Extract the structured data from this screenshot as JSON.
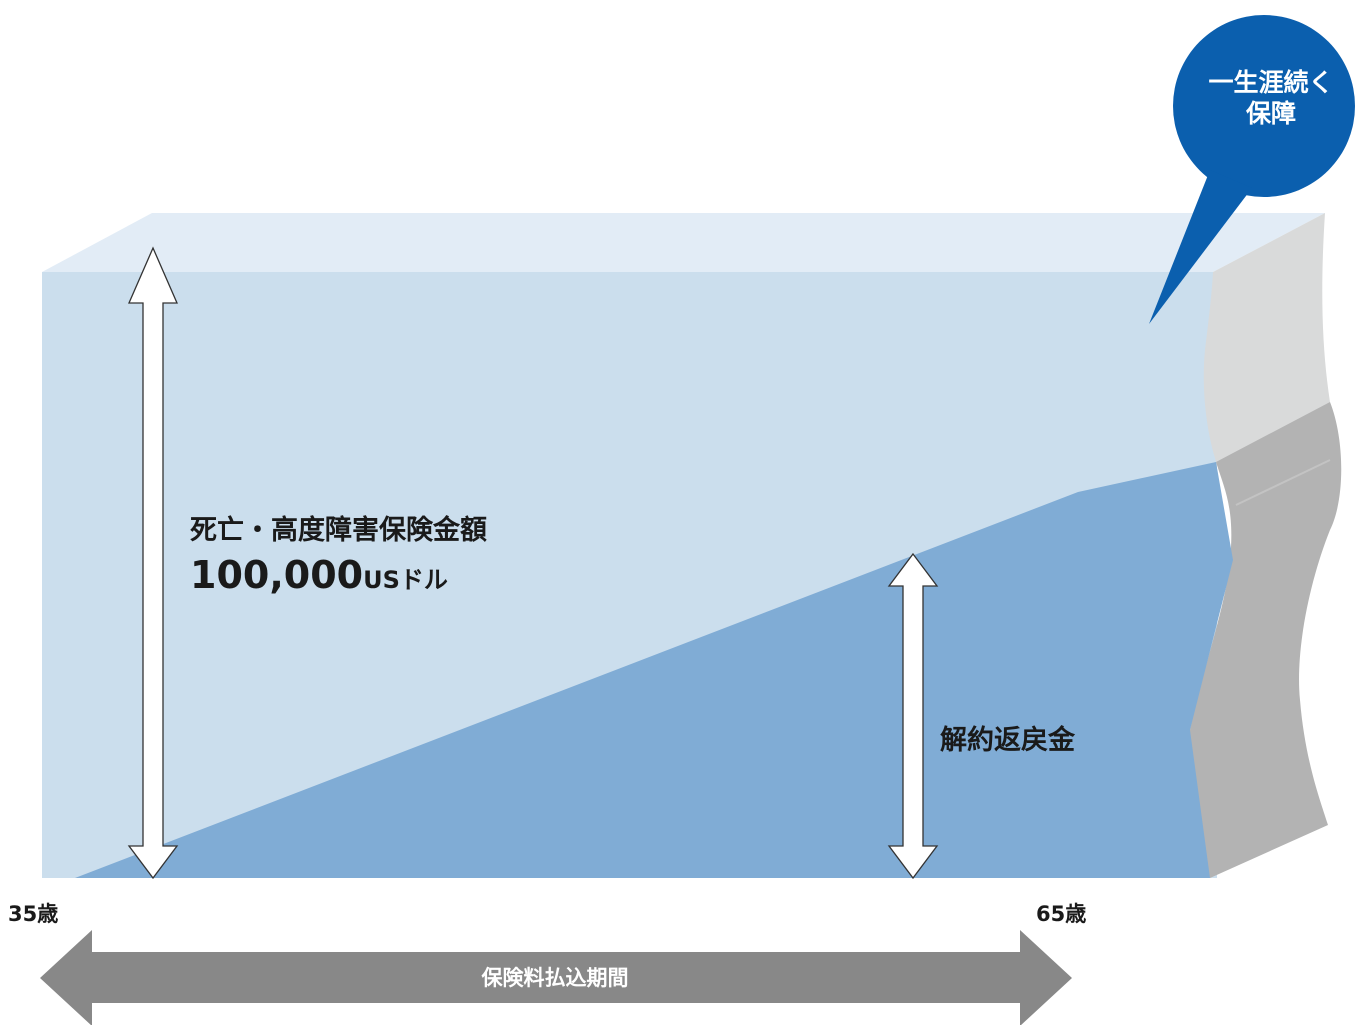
{
  "colors": {
    "coverage_front": "#cbdeed",
    "coverage_top": "#e2ecf6",
    "surrender_fill": "#80acd5",
    "edge_light": "#d9dada",
    "edge_dark": "#b3b3b3",
    "bubble": "#0b5fae",
    "period_arrow": "#888888",
    "text": "#1a1a1a"
  },
  "labels": {
    "death_benefit_title": "死亡・高度障害保険金額",
    "death_benefit_amount": "100,000",
    "death_benefit_unit": "USドル",
    "surrender_value": "解約返戻金",
    "age_start": "35歳",
    "age_end": "65歳",
    "premium_period": "保険料払込期間",
    "lifetime_bubble_line1": "一生涯続く",
    "lifetime_bubble_line2": "保障"
  },
  "icons": {
    "death_benefit_arrow": "double-vertical-arrow",
    "surrender_arrow": "double-vertical-arrow",
    "period_arrow": "double-horizontal-arrow",
    "bubble": "speech-bubble"
  }
}
